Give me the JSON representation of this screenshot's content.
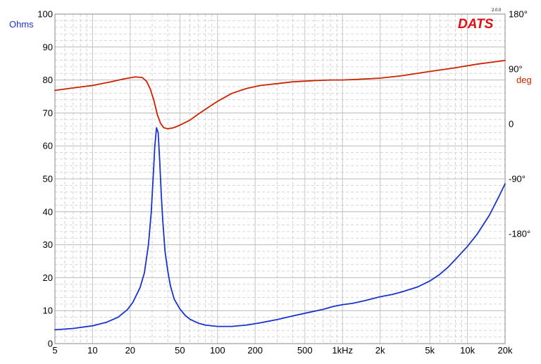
{
  "chart_data": {
    "type": "line",
    "title": "",
    "logo": "DATS",
    "version": "2.0.0",
    "xlabel": "",
    "x_scale": "log",
    "xlim": [
      5,
      20000
    ],
    "x_ticks": [
      {
        "value": 5,
        "label": "5"
      },
      {
        "value": 10,
        "label": "10"
      },
      {
        "value": 20,
        "label": "20"
      },
      {
        "value": 50,
        "label": "50"
      },
      {
        "value": 100,
        "label": "100"
      },
      {
        "value": 200,
        "label": "200"
      },
      {
        "value": 500,
        "label": "500"
      },
      {
        "value": 1000,
        "label": "1kHz"
      },
      {
        "value": 2000,
        "label": "2k"
      },
      {
        "value": 5000,
        "label": "5k"
      },
      {
        "value": 10000,
        "label": "10k"
      },
      {
        "value": 20000,
        "label": "20k"
      }
    ],
    "y_left": {
      "unit": "Ohms",
      "color": "#2233cc",
      "ylim": [
        0,
        100
      ],
      "ticks": [
        0,
        10,
        20,
        30,
        40,
        50,
        60,
        70,
        80,
        90,
        100
      ]
    },
    "y_right": {
      "unit": "deg",
      "color": "#cc2200",
      "ylim": [
        -360,
        180
      ],
      "ticks": [
        {
          "value": 180,
          "label": "180°"
        },
        {
          "value": 90,
          "label": "90°"
        },
        {
          "value": 0,
          "label": "0"
        },
        {
          "value": -90,
          "label": "-90°"
        },
        {
          "value": -180,
          "label": "-180°"
        }
      ]
    },
    "grid": true,
    "series": [
      {
        "axis": "left",
        "color": "#1a33cc",
        "points": [
          [
            5,
            4.2
          ],
          [
            7,
            4.6
          ],
          [
            10,
            5.4
          ],
          [
            13,
            6.5
          ],
          [
            16,
            8.0
          ],
          [
            19,
            10.3
          ],
          [
            21,
            12.5
          ],
          [
            24,
            17.0
          ],
          [
            26,
            21.5
          ],
          [
            28,
            30.0
          ],
          [
            29.5,
            40.0
          ],
          [
            30.5,
            50.0
          ],
          [
            31.5,
            60.0
          ],
          [
            32.5,
            65.5
          ],
          [
            33.5,
            64.0
          ],
          [
            34.5,
            55.0
          ],
          [
            35.5,
            45.0
          ],
          [
            36.5,
            37.0
          ],
          [
            38,
            28.0
          ],
          [
            39,
            25.0
          ],
          [
            40,
            22.0
          ],
          [
            42,
            17.5
          ],
          [
            45,
            13.5
          ],
          [
            50,
            10.5
          ],
          [
            55,
            8.6
          ],
          [
            60,
            7.4
          ],
          [
            70,
            6.2
          ],
          [
            80,
            5.6
          ],
          [
            100,
            5.2
          ],
          [
            130,
            5.2
          ],
          [
            170,
            5.6
          ],
          [
            220,
            6.3
          ],
          [
            300,
            7.3
          ],
          [
            400,
            8.4
          ],
          [
            500,
            9.2
          ],
          [
            700,
            10.4
          ],
          [
            850,
            11.3
          ],
          [
            1000,
            11.8
          ],
          [
            1200,
            12.2
          ],
          [
            1500,
            13.0
          ],
          [
            2000,
            14.2
          ],
          [
            2500,
            14.9
          ],
          [
            3000,
            15.7
          ],
          [
            4000,
            17.2
          ],
          [
            5000,
            19.0
          ],
          [
            6000,
            21.0
          ],
          [
            7000,
            23.2
          ],
          [
            8000,
            25.5
          ],
          [
            10000,
            29.5
          ],
          [
            12000,
            33.3
          ],
          [
            15000,
            39.0
          ],
          [
            18000,
            44.9
          ],
          [
            20000,
            48.5
          ]
        ]
      },
      {
        "axis": "right",
        "color": "#cc2200",
        "points": [
          [
            5,
            55
          ],
          [
            7,
            59
          ],
          [
            10,
            63
          ],
          [
            14,
            69
          ],
          [
            18,
            74
          ],
          [
            22,
            77
          ],
          [
            25,
            76
          ],
          [
            27,
            70
          ],
          [
            29,
            57
          ],
          [
            31,
            38
          ],
          [
            33,
            15
          ],
          [
            35,
            1
          ],
          [
            37,
            -6
          ],
          [
            40,
            -8
          ],
          [
            45,
            -6
          ],
          [
            50,
            -2
          ],
          [
            60,
            6
          ],
          [
            70,
            16
          ],
          [
            80,
            24
          ],
          [
            100,
            37
          ],
          [
            130,
            50
          ],
          [
            170,
            58
          ],
          [
            220,
            63
          ],
          [
            300,
            66
          ],
          [
            400,
            69
          ],
          [
            600,
            71
          ],
          [
            800,
            72
          ],
          [
            1000,
            72
          ],
          [
            1300,
            73
          ],
          [
            2000,
            75
          ],
          [
            3000,
            79
          ],
          [
            5000,
            86
          ],
          [
            8000,
            92
          ],
          [
            12000,
            98
          ],
          [
            20000,
            104
          ]
        ]
      }
    ]
  }
}
